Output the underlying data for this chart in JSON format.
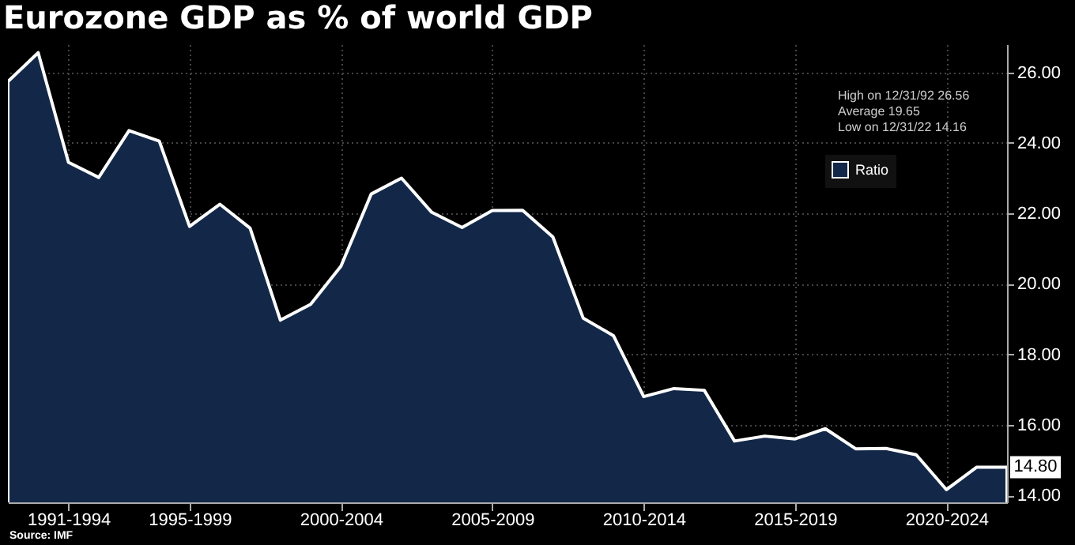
{
  "chart_data": {
    "type": "area",
    "title": "Eurozone GDP as % of world GDP",
    "categories": [
      null,
      null,
      "1991-1994",
      null,
      null,
      null,
      "1995-1999",
      null,
      null,
      null,
      null,
      "2000-2004",
      null,
      null,
      null,
      null,
      "2005-2009",
      null,
      null,
      null,
      null,
      "2010-2014",
      null,
      null,
      null,
      null,
      "2015-2019",
      null,
      null,
      null,
      null,
      "2020-2024",
      null,
      null
    ],
    "series": [
      {
        "name": "Ratio",
        "color": "#132848",
        "values": [
          25.74,
          26.56,
          23.45,
          23.02,
          24.35,
          24.05,
          21.63,
          22.26,
          21.58,
          18.97,
          19.42,
          20.5,
          22.55,
          23.0,
          22.03,
          21.6,
          22.08,
          22.09,
          21.33,
          19.03,
          18.53,
          16.8,
          17.03,
          16.98,
          15.54,
          15.68,
          15.6,
          15.89,
          15.32,
          15.33,
          15.15,
          14.16,
          14.8,
          14.8
        ],
        "value_labels": [
          null,
          null,
          null,
          null,
          null,
          null,
          null,
          null,
          null,
          null,
          null,
          null,
          null,
          null,
          null,
          null,
          null,
          null,
          null,
          null,
          null,
          null,
          null,
          null,
          null,
          null,
          null,
          null,
          null,
          null,
          null,
          null,
          null,
          "14.80"
        ]
      }
    ],
    "ylim": [
      13.8,
      26.8
    ],
    "yticks": [
      {
        "value": 14,
        "label": "14.00"
      },
      {
        "value": 16,
        "label": "16.00"
      },
      {
        "value": 18,
        "label": "18.00"
      },
      {
        "value": 20,
        "label": "20.00"
      },
      {
        "value": 22,
        "label": "22.00"
      },
      {
        "value": 24,
        "label": "24.00"
      },
      {
        "value": 26,
        "label": "26.00"
      }
    ],
    "grid": true,
    "legend": "top right",
    "annotations": [
      "High on 12/31/92 26.56",
      "Average 19.65",
      "Low on 12/31/22 14.16",
      "Source: IMF"
    ]
  }
}
